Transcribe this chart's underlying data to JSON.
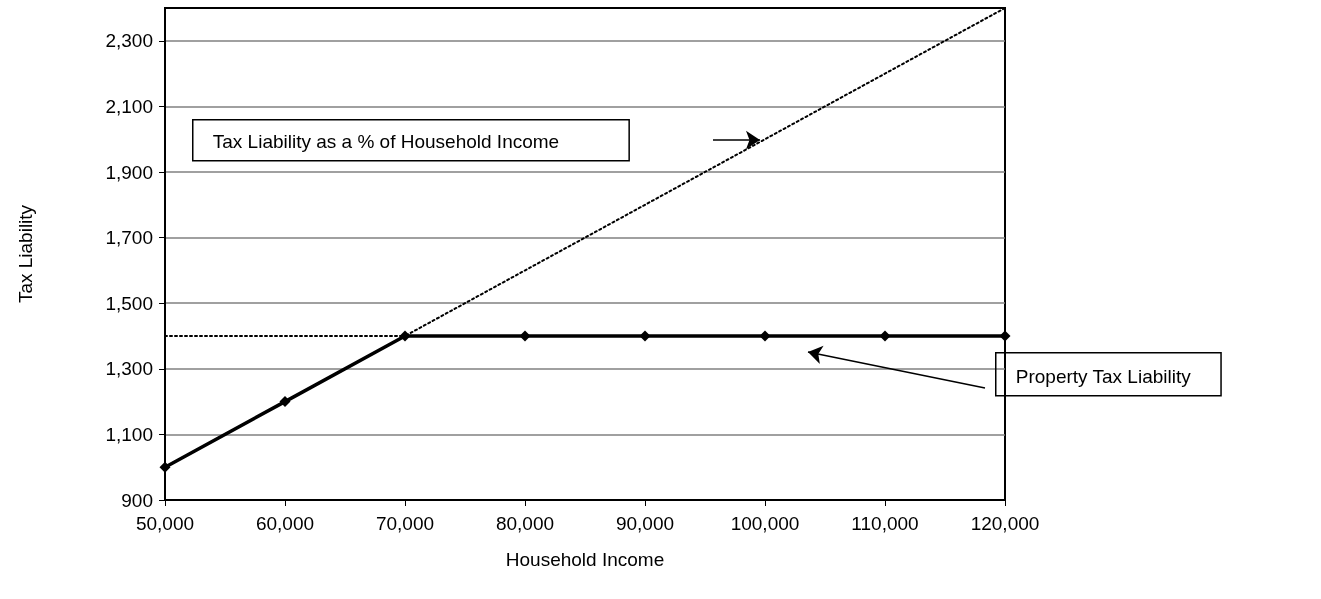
{
  "chart_data": {
    "type": "line",
    "xlabel": "Household Income",
    "ylabel": "Tax Liability",
    "x": [
      50000,
      60000,
      70000,
      80000,
      90000,
      100000,
      110000,
      120000
    ],
    "series": [
      {
        "color": "#000000",
        "values": [
          1000,
          1200,
          1400,
          1400,
          1400,
          1400,
          1400,
          1400
        ],
        "marker": "diamond",
        "line_style": "solid"
      },
      {
        "color": "#000000",
        "x": [
          50000,
          120000
        ],
        "values": [
          1000,
          2400
        ],
        "marker": "none",
        "line_style": "dotted"
      },
      {
        "color": "#000000",
        "x": [
          50000,
          70000
        ],
        "values": [
          1400,
          1400
        ],
        "marker": "none",
        "line_style": "dotted"
      }
    ],
    "xlim": [
      50000,
      120000
    ],
    "xticks": [
      {
        "value": 50000,
        "label": "50,000"
      },
      {
        "value": 60000,
        "label": "60,000"
      },
      {
        "value": 70000,
        "label": "70,000"
      },
      {
        "value": 80000,
        "label": "80,000"
      },
      {
        "value": 90000,
        "label": "90,000"
      },
      {
        "value": 100000,
        "label": "100,000"
      },
      {
        "value": 110000,
        "label": "110,000"
      },
      {
        "value": 120000,
        "label": "120,000"
      }
    ],
    "ylim": [
      900,
      2400
    ],
    "yticks": [
      900,
      {
        "value": 1100,
        "label": "1,100"
      },
      {
        "value": 1300,
        "label": "1,300"
      },
      {
        "value": 1500,
        "label": "1,500"
      },
      {
        "value": 1700,
        "label": "1,700"
      },
      {
        "value": 1900,
        "label": "1,900"
      },
      {
        "value": 2100,
        "label": "2,100"
      },
      {
        "value": 2300,
        "label": "2,300"
      }
    ],
    "grid": "y",
    "annotations": [
      "Tax Liability as a % of Household Income",
      "Property Tax Liability"
    ]
  }
}
